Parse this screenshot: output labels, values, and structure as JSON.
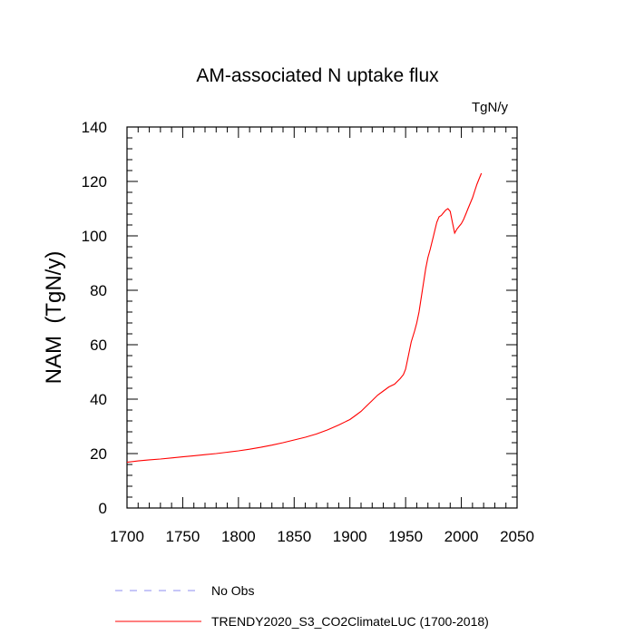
{
  "chart_data": {
    "type": "line",
    "title": "AM-associated N uptake flux",
    "units": "TgN/y",
    "ylabel": "NAM  (TgN/y)",
    "xlabel": "",
    "xlim": [
      1700,
      2050
    ],
    "ylim": [
      0,
      140
    ],
    "xticks": [
      1700,
      1750,
      1800,
      1850,
      1900,
      1950,
      2000,
      2050
    ],
    "yticks": [
      0,
      20,
      40,
      60,
      80,
      100,
      120,
      140
    ],
    "grid": false,
    "legend_position": "bottom",
    "series": [
      {
        "name": "TRENDY2020_S3_CO2ClimateLUC (1700-2018)",
        "color": "#ff0000",
        "dash": "solid",
        "x": [
          1700,
          1710,
          1720,
          1730,
          1740,
          1750,
          1760,
          1770,
          1780,
          1790,
          1800,
          1810,
          1820,
          1830,
          1840,
          1850,
          1860,
          1870,
          1880,
          1890,
          1900,
          1905,
          1910,
          1915,
          1920,
          1925,
          1930,
          1935,
          1940,
          1945,
          1948,
          1950,
          1952,
          1955,
          1958,
          1960,
          1962,
          1965,
          1968,
          1970,
          1972,
          1975,
          1978,
          1980,
          1982,
          1984,
          1986,
          1988,
          1990,
          1992,
          1994,
          1996,
          1998,
          2000,
          2002,
          2004,
          2006,
          2008,
          2010,
          2012,
          2014,
          2016,
          2018
        ],
        "y": [
          16.8,
          17.3,
          17.7,
          18.0,
          18.4,
          18.8,
          19.2,
          19.6,
          20.0,
          20.5,
          21.0,
          21.6,
          22.3,
          23.1,
          24.0,
          25.0,
          26.0,
          27.2,
          28.7,
          30.5,
          32.5,
          34.0,
          35.5,
          37.5,
          39.5,
          41.5,
          43.0,
          44.5,
          45.5,
          47.5,
          49.0,
          51.0,
          55.0,
          61.0,
          65.0,
          68.0,
          72.0,
          80.0,
          88.0,
          92.0,
          95.0,
          100.0,
          105.0,
          107.0,
          107.5,
          108.5,
          109.5,
          110.0,
          109.0,
          105.0,
          101.0,
          102.5,
          103.5,
          104.5,
          106.0,
          108.0,
          110.0,
          112.0,
          114.0,
          116.5,
          119.0,
          121.0,
          123.0
        ]
      },
      {
        "name": "No Obs",
        "color": "#8c8cf0",
        "dash": "dashed",
        "x": [],
        "y": []
      }
    ]
  }
}
